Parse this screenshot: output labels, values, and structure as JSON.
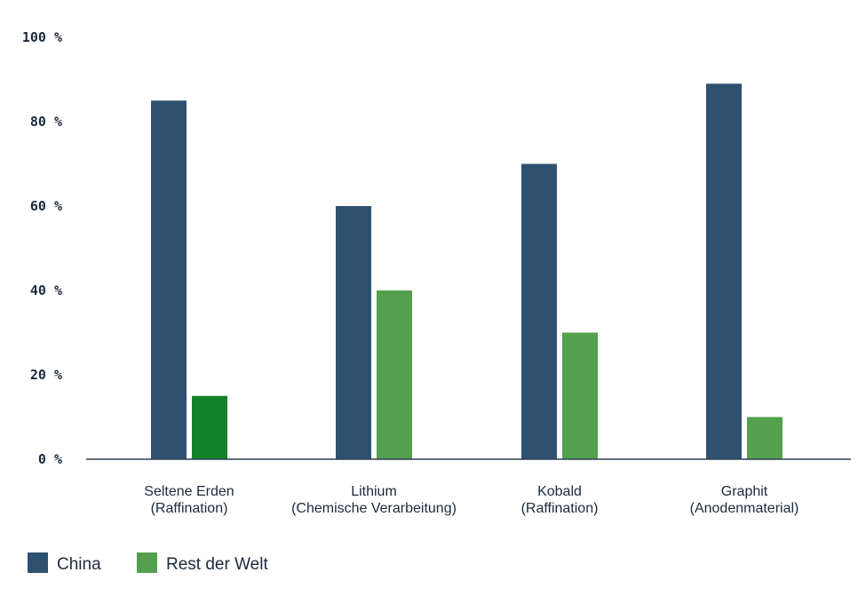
{
  "chart_data": {
    "type": "bar",
    "categories": [
      [
        "Seltene Erden",
        "(Raffination)"
      ],
      [
        "Lithium",
        "(Chemische Verarbeitung)"
      ],
      [
        "Kobald",
        "(Raffination)"
      ],
      [
        "Graphit",
        "(Anodenmaterial)"
      ]
    ],
    "series": [
      {
        "name": "China",
        "values": [
          85,
          60,
          70,
          89
        ],
        "color": "#2f5170"
      },
      {
        "name": "Rest der Welt",
        "values": [
          15,
          40,
          30,
          10
        ],
        "color": "#55a04e",
        "highlight_color": "#11822a",
        "highlight_index": 0
      }
    ],
    "ylim": [
      0,
      100
    ],
    "yticks": [
      0,
      20,
      40,
      60,
      80,
      100
    ],
    "ytick_labels": [
      "0 %",
      "20 %",
      "40 %",
      "60 %",
      "80 %",
      "100 %"
    ],
    "grid": false,
    "legend": "bottom-left",
    "axis_color": "#2f3e55"
  }
}
